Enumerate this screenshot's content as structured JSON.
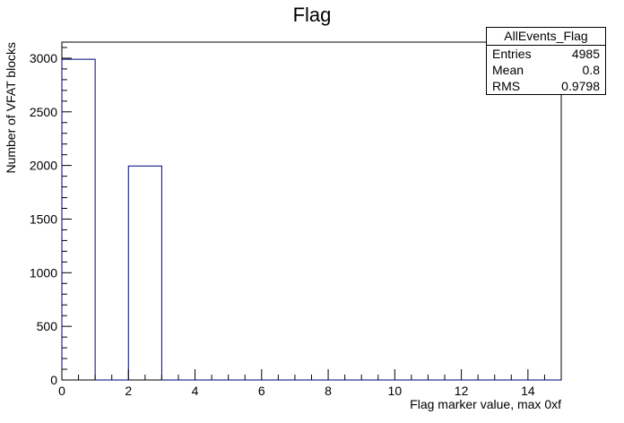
{
  "chart_data": {
    "type": "bar",
    "title": "Flag",
    "xlabel": "Flag marker value, max 0xf",
    "ylabel": "Number of VFAT blocks",
    "xlim": [
      0,
      15
    ],
    "ylim": [
      0,
      3150
    ],
    "bin_width": 1,
    "bins": [
      {
        "x": 0,
        "value": 2990
      },
      {
        "x": 1,
        "value": 0
      },
      {
        "x": 2,
        "value": 1995
      },
      {
        "x": 3,
        "value": 0
      },
      {
        "x": 4,
        "value": 0
      },
      {
        "x": 5,
        "value": 0
      },
      {
        "x": 6,
        "value": 0
      },
      {
        "x": 7,
        "value": 0
      },
      {
        "x": 8,
        "value": 0
      },
      {
        "x": 9,
        "value": 0
      },
      {
        "x": 10,
        "value": 0
      },
      {
        "x": 11,
        "value": 0
      },
      {
        "x": 12,
        "value": 0
      },
      {
        "x": 13,
        "value": 0
      },
      {
        "x": 14,
        "value": 0
      }
    ],
    "x_ticks": [
      0,
      2,
      4,
      6,
      8,
      10,
      12,
      14
    ],
    "y_ticks": [
      0,
      500,
      1000,
      1500,
      2000,
      2500,
      3000
    ],
    "grid": false,
    "legend": "none",
    "line_color": "#000080",
    "stats_box": {
      "placement": "top-right",
      "name": "AllEvents_Flag",
      "rows": [
        {
          "label": "Entries",
          "value": "4985"
        },
        {
          "label": "Mean",
          "value": "0.8"
        },
        {
          "label": "RMS",
          "value": "0.9798"
        }
      ]
    }
  }
}
